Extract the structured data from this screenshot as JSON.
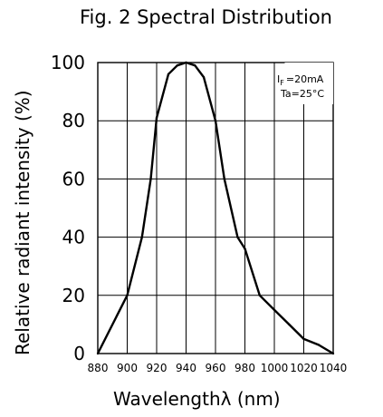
{
  "chart_data": {
    "type": "line",
    "title": "Fig. 2 Spectral Distribution",
    "xlabel": "Wavelengthλ  (nm)",
    "ylabel": "Relative radiant intensity (%)",
    "xlim": [
      880,
      1040
    ],
    "ylim": [
      0,
      100
    ],
    "xticks": [
      "880",
      "900",
      "920",
      "940",
      "960",
      "980",
      "1000",
      "1020",
      "1040"
    ],
    "yticks": [
      "0",
      "20",
      "40",
      "60",
      "80",
      "100"
    ],
    "grid": true,
    "annotations": [
      "Iₒ =20mA",
      "Ta=25°C"
    ],
    "conditions": {
      "current": "I",
      "current_sub": "F",
      "current_val": "=20mA",
      "temperature": "Ta=25°C"
    },
    "series": [
      {
        "x": [
          880,
          900,
          910,
          916,
          920,
          928,
          934,
          940,
          946,
          952,
          960,
          966,
          975,
          980,
          990,
          1000,
          1010,
          1020,
          1030,
          1040
        ],
        "y": [
          0,
          20,
          40,
          60,
          81,
          96,
          99,
          100,
          99,
          95,
          80,
          60,
          40,
          36,
          20,
          15,
          10,
          5,
          3,
          0
        ]
      }
    ],
    "colors": {
      "line": "#000000",
      "grid": "#000000"
    }
  }
}
